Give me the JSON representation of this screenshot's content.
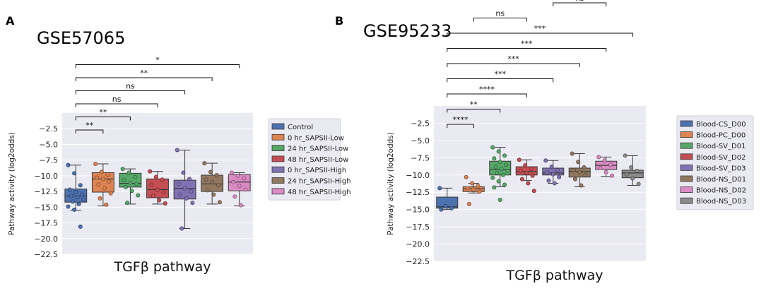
{
  "chart_data": [
    {
      "panel": "A",
      "title": "GSE57065",
      "type": "box",
      "xlabel": "TGFβ pathway",
      "ylabel": "Pathway activity (log2odds)",
      "ylim": [
        -22.5,
        0
      ],
      "yticks": [
        -2.5,
        -5.0,
        -7.5,
        -10.0,
        -12.5,
        -15.0,
        -17.5,
        -20.0,
        -22.5
      ],
      "ytick_labels": [
        "−2.5",
        "−5.0",
        "−7.5",
        "−10.0",
        "−12.5",
        "−15.0",
        "−17.5",
        "−20.0",
        "−22.5"
      ],
      "legend_position": "right",
      "series": [
        {
          "name": "Control",
          "color": "#4c72b0",
          "q1": -14.2,
          "median": -13.2,
          "q3": -12.1,
          "whisker_low": -15.5,
          "whisker_high": -8.3,
          "points": [
            -8.3,
            -9.6,
            -11.5,
            -12.2,
            -12.6,
            -13.0,
            -13.2,
            -13.4,
            -13.8,
            -14.1,
            -14.5,
            -14.9,
            -15.4,
            -18.1
          ]
        },
        {
          "name": "0 hr_SAPSII-Low",
          "color": "#dd8452",
          "q1": -12.6,
          "median": -10.5,
          "q3": -9.5,
          "whisker_low": -14.8,
          "whisker_high": -8.1,
          "points": [
            -8.1,
            -9.4,
            -9.8,
            -10.3,
            -10.5,
            -10.9,
            -11.4,
            -12.0,
            -12.8,
            -13.6,
            -14.6
          ]
        },
        {
          "name": "24 hr_SAPSII-Low",
          "color": "#55a868",
          "q1": -11.8,
          "median": -11.2,
          "q3": -9.6,
          "whisker_low": -14.5,
          "whisker_high": -8.9,
          "points": [
            -8.9,
            -9.5,
            -10.2,
            -10.7,
            -11.1,
            -11.3,
            -11.8,
            -12.4,
            -13.1,
            -14.3
          ]
        },
        {
          "name": "48 hr_SAPSII-Low",
          "color": "#c44e52",
          "q1": -13.5,
          "median": -12.2,
          "q3": -10.5,
          "whisker_low": -14.5,
          "whisker_high": -9.3,
          "points": [
            -9.3,
            -10.2,
            -10.6,
            -11.4,
            -12.2,
            -12.6,
            -13.2,
            -13.9,
            -14.4
          ]
        },
        {
          "name": "0 hr_SAPSII-High",
          "color": "#8172b3",
          "q1": -13.7,
          "median": -12.0,
          "q3": -10.7,
          "whisker_low": -18.4,
          "whisker_high": -5.9,
          "points": [
            -5.9,
            -9.5,
            -10.5,
            -11.3,
            -12.0,
            -12.5,
            -13.0,
            -13.6,
            -14.3,
            -18.4
          ]
        },
        {
          "name": "24 hr_SAPSII-High",
          "color": "#937860",
          "q1": -12.5,
          "median": -11.3,
          "q3": -9.9,
          "whisker_low": -14.5,
          "whisker_high": -8.0,
          "points": [
            -8.0,
            -9.4,
            -9.9,
            -10.6,
            -11.0,
            -11.5,
            -12.3,
            -13.0,
            -14.2
          ]
        },
        {
          "name": "48 hr_SAPSII-High",
          "color": "#da8bc3",
          "q1": -12.4,
          "median": -11.0,
          "q3": -9.8,
          "whisker_low": -14.8,
          "whisker_high": -9.5,
          "points": [
            -9.5,
            -10.0,
            -10.4,
            -11.0,
            -11.6,
            -12.2,
            -13.3,
            -14.7
          ]
        }
      ],
      "annotations": [
        {
          "from": 0,
          "to": 1,
          "label": "**"
        },
        {
          "from": 0,
          "to": 2,
          "label": "**"
        },
        {
          "from": 0,
          "to": 3,
          "label": "ns"
        },
        {
          "from": 0,
          "to": 4,
          "label": "ns"
        },
        {
          "from": 0,
          "to": 5,
          "label": "**"
        },
        {
          "from": 0,
          "to": 6,
          "label": "*"
        }
      ]
    },
    {
      "panel": "B",
      "title": "GSE95233",
      "type": "box",
      "xlabel": "TGFβ pathway",
      "ylabel": "Pathway activity (log2odds)",
      "ylim": [
        -22.5,
        0
      ],
      "yticks": [
        -2.5,
        -5.0,
        -7.5,
        -10.0,
        -12.5,
        -15.0,
        -17.5,
        -20.0,
        -22.5
      ],
      "ytick_labels": [
        "−2.5",
        "−5.0",
        "−7.5",
        "−10.0",
        "−12.5",
        "−15.0",
        "−17.5",
        "−20.0",
        "−22.5"
      ],
      "legend_position": "right",
      "series": [
        {
          "name": "Blood-CS_D00",
          "color": "#4c72b0",
          "q1": -14.8,
          "median": -14.6,
          "q3": -13.2,
          "whisker_low": -15.0,
          "whisker_high": -11.9,
          "points": [
            -11.9,
            -14.5,
            -14.8,
            -15.0
          ]
        },
        {
          "name": "Blood-PC_D00",
          "color": "#dd8452",
          "q1": -12.4,
          "median": -12.0,
          "q3": -11.7,
          "whisker_low": -12.6,
          "whisker_high": -11.2,
          "points": [
            -10.3,
            -11.2,
            -11.6,
            -11.9,
            -12.1,
            -12.4,
            -14.2
          ]
        },
        {
          "name": "Blood-SV_D01",
          "color": "#55a868",
          "q1": -10.0,
          "median": -9.2,
          "q3": -8.0,
          "whisker_low": -11.7,
          "whisker_high": -6.0,
          "points": [
            -6.0,
            -6.6,
            -7.2,
            -7.6,
            -8.1,
            -8.5,
            -8.8,
            -9.1,
            -9.4,
            -9.7,
            -10.0,
            -10.4,
            -10.9,
            -11.4,
            -11.8,
            -13.6
          ]
        },
        {
          "name": "Blood-SV_D02",
          "color": "#c44e52",
          "q1": -10.0,
          "median": -9.5,
          "q3": -8.8,
          "whisker_low": -10.8,
          "whisker_high": -7.8,
          "points": [
            -7.8,
            -8.6,
            -9.1,
            -9.4,
            -9.7,
            -10.1,
            -10.6,
            -11.2,
            -12.3
          ]
        },
        {
          "name": "Blood-SV_D03",
          "color": "#8172b3",
          "q1": -10.0,
          "median": -9.7,
          "q3": -9.0,
          "whisker_low": -11.2,
          "whisker_high": -7.9,
          "points": [
            -7.9,
            -8.8,
            -9.3,
            -9.6,
            -9.9,
            -10.3,
            -10.8,
            -11.2
          ]
        },
        {
          "name": "Blood-NS_D01",
          "color": "#937860",
          "q1": -10.3,
          "median": -9.5,
          "q3": -9.0,
          "whisker_low": -11.7,
          "whisker_high": -6.9,
          "points": [
            -6.9,
            -8.1,
            -8.9,
            -9.3,
            -9.6,
            -10.0,
            -10.6,
            -11.5
          ]
        },
        {
          "name": "Blood-NS_D02",
          "color": "#da8bc3",
          "q1": -9.2,
          "median": -8.6,
          "q3": -8.0,
          "whisker_low": -10.2,
          "whisker_high": -7.4,
          "points": [
            -7.4,
            -7.9,
            -8.5,
            -9.0,
            -9.6,
            -10.1
          ]
        },
        {
          "name": "Blood-NS_D03",
          "color": "#8c8c8c",
          "q1": -10.4,
          "median": -9.7,
          "q3": -9.3,
          "whisker_low": -11.5,
          "whisker_high": -7.2,
          "points": [
            -7.2,
            -8.9,
            -9.4,
            -9.9,
            -10.5,
            -11.3
          ]
        }
      ],
      "annotations": [
        {
          "from": 0,
          "to": 1,
          "label": "****"
        },
        {
          "from": 0,
          "to": 2,
          "label": "**"
        },
        {
          "from": 0,
          "to": 3,
          "label": "****"
        },
        {
          "from": 0,
          "to": 4,
          "label": "***"
        },
        {
          "from": 0,
          "to": 5,
          "label": "***"
        },
        {
          "from": 0,
          "to": 6,
          "label": "***"
        },
        {
          "from": 0,
          "to": 7,
          "label": "***"
        },
        {
          "from": 1,
          "to": 3,
          "label": "ns"
        },
        {
          "from": 4,
          "to": 6,
          "label": "ns"
        }
      ]
    }
  ]
}
